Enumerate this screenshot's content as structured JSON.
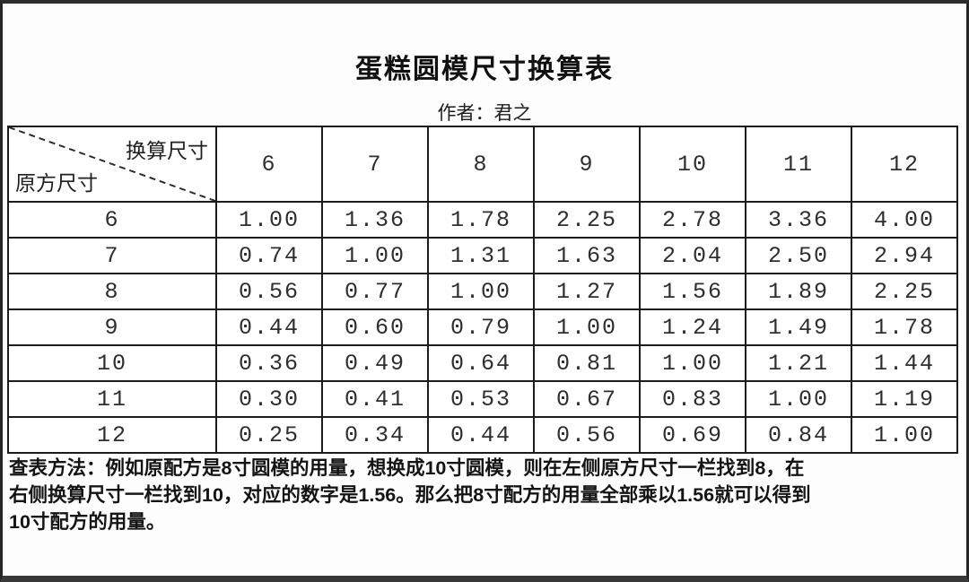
{
  "chart_data": {
    "type": "table",
    "title": "蛋糕圆模尺寸换算表",
    "subtitle": "作者：君之",
    "corner": {
      "top_right": "换算尺寸",
      "bottom_left": "原方尺寸"
    },
    "columns": [
      "6",
      "7",
      "8",
      "9",
      "10",
      "11",
      "12"
    ],
    "rows": [
      {
        "label": "6",
        "values": [
          "1.00",
          "1.36",
          "1.78",
          "2.25",
          "2.78",
          "3.36",
          "4.00"
        ]
      },
      {
        "label": "7",
        "values": [
          "0.74",
          "1.00",
          "1.31",
          "1.63",
          "2.04",
          "2.50",
          "2.94"
        ]
      },
      {
        "label": "8",
        "values": [
          "0.56",
          "0.77",
          "1.00",
          "1.27",
          "1.56",
          "1.89",
          "2.25"
        ]
      },
      {
        "label": "9",
        "values": [
          "0.44",
          "0.60",
          "0.79",
          "1.00",
          "1.24",
          "1.49",
          "1.78"
        ]
      },
      {
        "label": "10",
        "values": [
          "0.36",
          "0.49",
          "0.64",
          "0.81",
          "1.00",
          "1.21",
          "1.44"
        ]
      },
      {
        "label": "11",
        "values": [
          "0.30",
          "0.41",
          "0.53",
          "0.67",
          "0.83",
          "1.00",
          "1.19"
        ]
      },
      {
        "label": "12",
        "values": [
          "0.25",
          "0.34",
          "0.44",
          "0.56",
          "0.69",
          "0.84",
          "1.00"
        ]
      }
    ],
    "note_lines": [
      "查表方法：例如原配方是8寸圆模的用量，想换成10寸圆模，则在左侧原方尺寸一栏找到8，在",
      "右侧换算尺寸一栏找到10，对应的数字是1.56。那么把8寸配方的用量全部乘以1.56就可以得到",
      "10寸配方的用量。"
    ],
    "layout": {
      "legend_position": "none",
      "grid": "full-borders"
    }
  },
  "colors": {
    "frame_border": "#2c2c2c",
    "table_border": "#1c1c1c",
    "text": "#1b1b1b",
    "background": "#fdfdfd"
  }
}
